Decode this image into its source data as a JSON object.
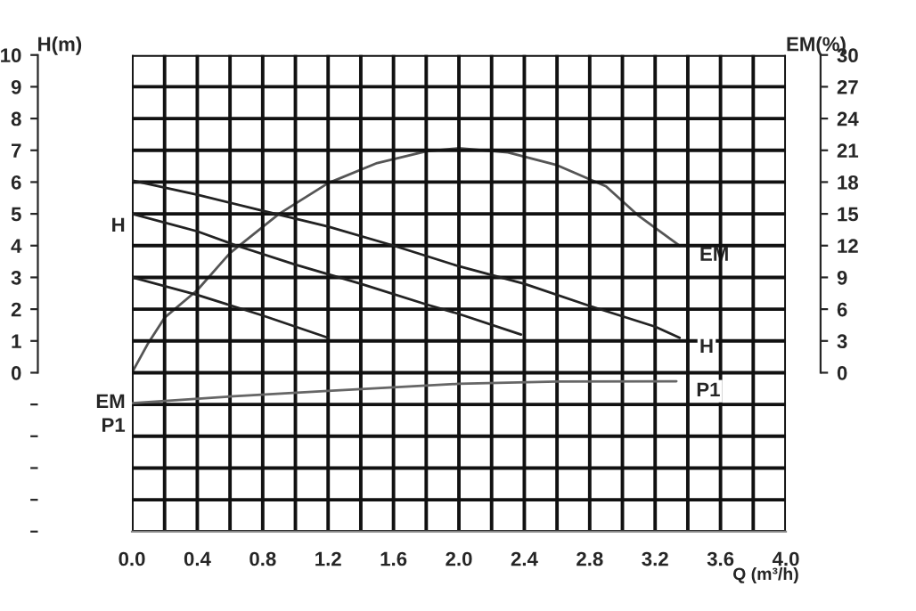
{
  "chart_data": {
    "type": "line",
    "xlabel": "Q (m³/h)",
    "ylabel": "H(m)",
    "y2label": "EM(%)",
    "xlim": [
      0,
      4
    ],
    "ylim": [
      -5,
      10
    ],
    "y2lim": [
      -15,
      30
    ],
    "xticks": [
      {
        "value": 0,
        "label": "0.0"
      },
      {
        "value": 0.2,
        "label": null
      },
      {
        "value": 0.4,
        "label": "0.4"
      },
      {
        "value": 0.6,
        "label": null
      },
      {
        "value": 0.8,
        "label": "0.8"
      },
      {
        "value": 1.0,
        "label": null
      },
      {
        "value": 1.2,
        "label": "1.2"
      },
      {
        "value": 1.4,
        "label": null
      },
      {
        "value": 1.6,
        "label": "1.6"
      },
      {
        "value": 1.8,
        "label": null
      },
      {
        "value": 2.0,
        "label": "2.0"
      },
      {
        "value": 2.2,
        "label": null
      },
      {
        "value": 2.4,
        "label": "2.4"
      },
      {
        "value": 2.6,
        "label": null
      },
      {
        "value": 2.8,
        "label": "2.8"
      },
      {
        "value": 3.0,
        "label": null
      },
      {
        "value": 3.2,
        "label": "3.2"
      },
      {
        "value": 3.4,
        "label": null
      },
      {
        "value": 3.6,
        "label": "3.6"
      },
      {
        "value": 3.8,
        "label": null
      },
      {
        "value": 4.0,
        "label": "4.0"
      }
    ],
    "yticks": [
      {
        "value": -5,
        "label": null
      },
      {
        "value": -4,
        "label": null
      },
      {
        "value": -3,
        "label": null
      },
      {
        "value": -2,
        "label": null
      },
      {
        "value": -1,
        "label": null
      },
      0,
      1,
      2,
      3,
      4,
      5,
      6,
      7,
      8,
      9,
      10
    ],
    "y2ticks": [
      0,
      3,
      6,
      9,
      12,
      15,
      18,
      21,
      24,
      27,
      30
    ],
    "grid": true,
    "marker": "none",
    "line_style": "solid",
    "series": [
      {
        "name": "H",
        "color": "#222222",
        "x": [
          0,
          0.4,
          0.8,
          1.2,
          1.6,
          2.0,
          2.4,
          2.8,
          3.2,
          3.35
        ],
        "values": [
          6.05,
          5.6,
          5.1,
          4.6,
          4.0,
          3.35,
          2.8,
          2.1,
          1.45,
          1.1
        ]
      },
      {
        "color": "#222222",
        "x": [
          0,
          0.4,
          0.64,
          1.0,
          1.4,
          1.8,
          2.0,
          2.38
        ],
        "values": [
          5.0,
          4.45,
          4.0,
          3.4,
          2.8,
          2.15,
          1.85,
          1.2
        ]
      },
      {
        "color": "#222222",
        "x": [
          0,
          0.4,
          0.8,
          1.2
        ],
        "values": [
          3.0,
          2.45,
          1.8,
          1.1
        ]
      },
      {
        "name": "EM",
        "color": "#555555",
        "axis": "y2",
        "x": [
          0,
          0.1,
          0.2,
          0.4,
          0.6,
          0.9,
          1.2,
          1.5,
          1.8,
          2.0,
          2.3,
          2.6,
          2.9,
          3.1,
          3.35
        ],
        "values": [
          0,
          2.8,
          5.2,
          7.8,
          11.3,
          15,
          17.9,
          19.8,
          20.9,
          21.2,
          20.8,
          19.6,
          17.6,
          14.8,
          12
        ]
      },
      {
        "name": "P1",
        "color": "#666666",
        "x": [
          0,
          0.6,
          1.2,
          2.0,
          2.6,
          3.33
        ],
        "values": [
          -0.96,
          -0.75,
          -0.57,
          -0.35,
          -0.28,
          -0.27
        ]
      }
    ],
    "annotations": [
      "H",
      "EM",
      "P1"
    ]
  }
}
